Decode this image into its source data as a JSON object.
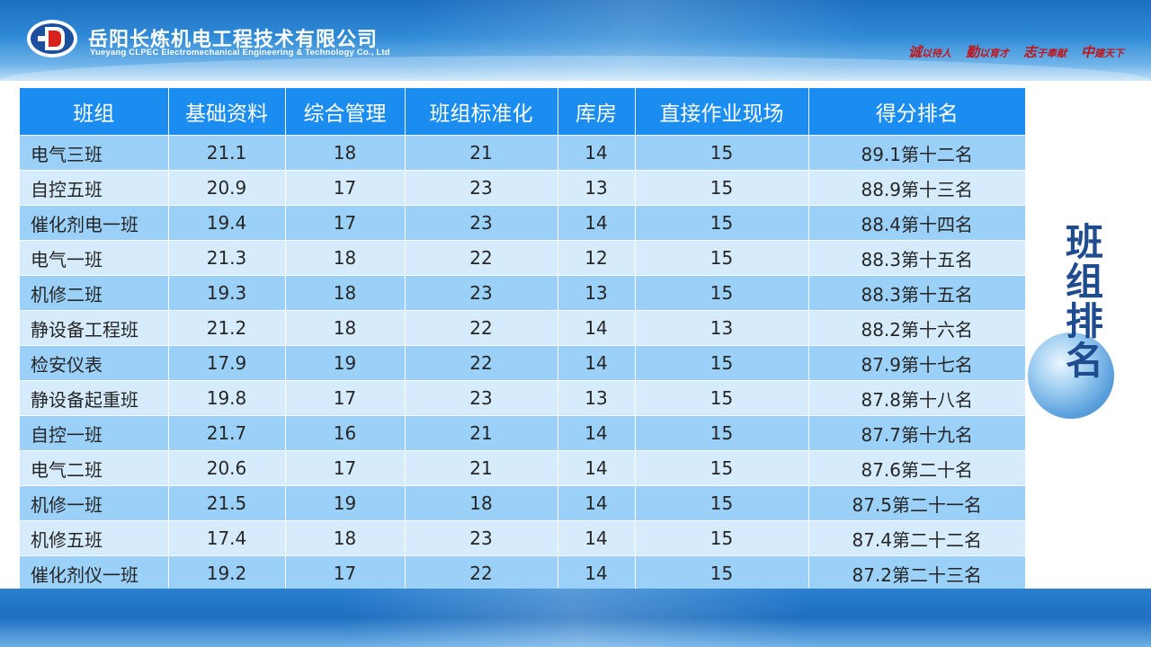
{
  "header": {
    "company_cn": "岳阳长炼机电工程技术有限公司",
    "company_en": "Yueyang CLPEC Electromechanical Engineering & Technology Co., Ltd",
    "slogans": [
      {
        "big": "诚",
        "rest": "以待人"
      },
      {
        "big": "勤",
        "rest": "以育才"
      },
      {
        "big": "志",
        "rest": "于奉献"
      },
      {
        "big": "中",
        "rest": "建天下"
      }
    ]
  },
  "table": {
    "headers": [
      "班组",
      "基础资料",
      "综合管理",
      "班组标准化",
      "库房",
      "直接作业现场",
      "得分排名"
    ],
    "rows": [
      [
        "电气三班",
        "21.1",
        "18",
        "21",
        "14",
        "15",
        "89.1第十二名"
      ],
      [
        "自控五班",
        "20.9",
        "17",
        "23",
        "13",
        "15",
        "88.9第十三名"
      ],
      [
        "催化剂电一班",
        "19.4",
        "17",
        "23",
        "14",
        "15",
        "88.4第十四名"
      ],
      [
        "电气一班",
        "21.3",
        "18",
        "22",
        "12",
        "15",
        "88.3第十五名"
      ],
      [
        "机修二班",
        "19.3",
        "18",
        "23",
        "13",
        "15",
        "88.3第十五名"
      ],
      [
        "静设备工程班",
        "21.2",
        "18",
        "22",
        "14",
        "13",
        "88.2第十六名"
      ],
      [
        "检安仪表",
        "17.9",
        "19",
        "22",
        "14",
        "15",
        "87.9第十七名"
      ],
      [
        "静设备起重班",
        "19.8",
        "17",
        "23",
        "13",
        "15",
        "87.8第十八名"
      ],
      [
        "自控一班",
        "21.7",
        "16",
        "21",
        "14",
        "15",
        "87.7第十九名"
      ],
      [
        "电气二班",
        "20.6",
        "17",
        "21",
        "14",
        "15",
        "87.6第二十名"
      ],
      [
        "机修一班",
        "21.5",
        "19",
        "18",
        "14",
        "15",
        "87.5第二十一名"
      ],
      [
        "机修五班",
        "17.4",
        "18",
        "23",
        "14",
        "15",
        "87.4第二十二名"
      ],
      [
        "催化剂仪一班",
        "19.2",
        "17",
        "22",
        "14",
        "15",
        "87.2第二十三名"
      ]
    ]
  },
  "side_title": [
    "班",
    "组",
    "排",
    "名"
  ],
  "colors": {
    "header_row": "#1b8df0",
    "row_odd": "#9bd0f8",
    "row_even": "#d6ecfc",
    "title": "#1f4b8f",
    "slogan": "#c0151a"
  }
}
